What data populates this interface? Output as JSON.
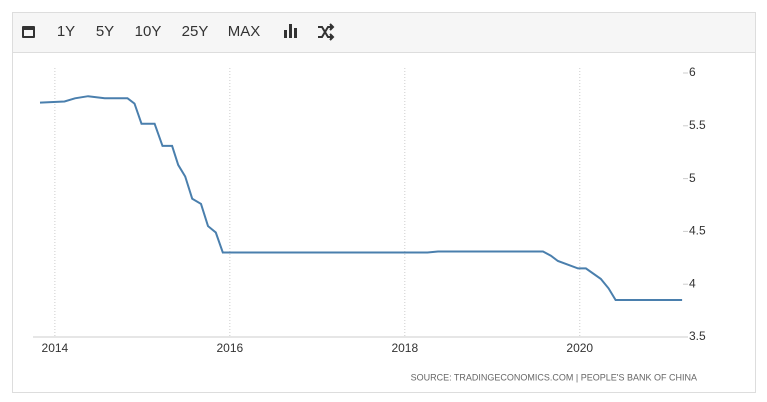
{
  "toolbar": [
    "1Y",
    "5Y",
    "10Y",
    "25Y",
    "MAX"
  ],
  "chart_data": {
    "type": "line",
    "color": "#4a7fad",
    "x": [
      2013.83,
      2014.11,
      2014.23,
      2014.38,
      2014.57,
      2014.83,
      2014.91,
      2014.99,
      2015.14,
      2015.23,
      2015.34,
      2015.41,
      2015.49,
      2015.57,
      2015.67,
      2015.75,
      2015.84,
      2015.92,
      2018.26,
      2018.38,
      2019.58,
      2019.67,
      2019.75,
      2019.98,
      2020.07,
      2020.24,
      2020.33,
      2020.41,
      2021.17
    ],
    "values": [
      5.72,
      5.73,
      5.76,
      5.78,
      5.76,
      5.76,
      5.71,
      5.52,
      5.52,
      5.31,
      5.31,
      5.13,
      5.02,
      4.81,
      4.76,
      4.55,
      4.49,
      4.3,
      4.3,
      4.31,
      4.31,
      4.27,
      4.22,
      4.15,
      4.15,
      4.05,
      3.96,
      3.85,
      3.85
    ],
    "xlim": [
      2013.75,
      2021.18
    ],
    "xticks": [
      2014,
      2016,
      2018,
      2020
    ],
    "ylim": [
      3.5,
      6
    ],
    "yticks": [
      3.5,
      4,
      4.5,
      5,
      5.5,
      6
    ],
    "grid": true,
    "source": "SOURCE: TRADINGECONOMICS.COM | PEOPLE'S BANK OF CHINA"
  }
}
